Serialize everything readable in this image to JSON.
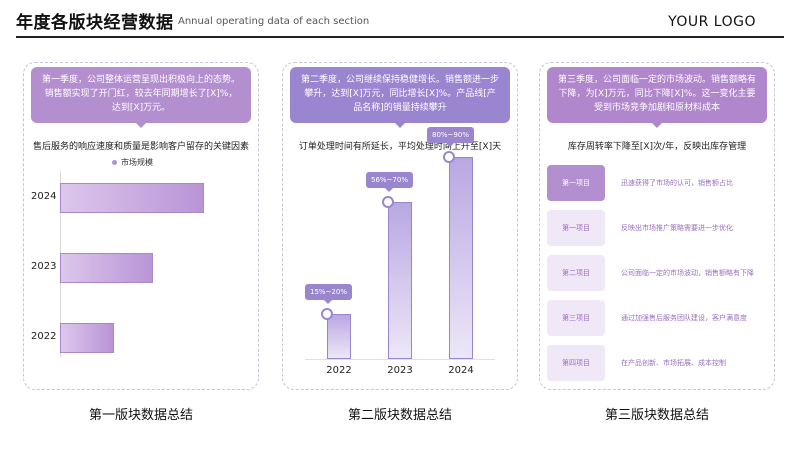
{
  "header": {
    "title": "年度各版块经营数据",
    "subtitle": "Annual operating data of each section",
    "logo": "YOUR LOGO"
  },
  "panels": [
    {
      "bubble": "第一季度，公司整体运营呈现出积极向上的态势。销售额实现了开门红，较去年同期增长了[X]%，达到[X]万元。",
      "chart_title": "售后服务的响应速度和质量是影响客户留存的关键因素",
      "footer": "第一版块数据总结"
    },
    {
      "bubble": "第二季度，公司继续保持稳健增长。销售额进一步攀升，达到[X]万元，同比增长[X]%。产品线[产品名称]的销量持续攀升",
      "chart_title": "订单处理时间有所延长，平均处理时间上升至[X]天",
      "footer": "第二版块数据总结"
    },
    {
      "bubble": "第三季度，公司面临一定的市场波动。销售额略有下降，为[X]万元，同比下降[X]%。这一变化主要受到市场竞争加剧和原材料成本",
      "chart_title": "库存周转率下降至[X]次/年，反映出库存管理",
      "footer": "第三版块数据总结",
      "items": [
        {
          "tag": "第一项目",
          "text": "迅速获得了市场的认可，销售额占比"
        },
        {
          "tag": "第一项目",
          "text": "反映出市场推广策略需要进一步优化"
        },
        {
          "tag": "第二项目",
          "text": "公司面临一定的市场波动，销售额略有下降"
        },
        {
          "tag": "第三项目",
          "text": "通过加强售后服务团队建设，客户满意度"
        },
        {
          "tag": "第四项目",
          "text": "在产品创新、市场拓展、成本控制"
        }
      ]
    }
  ],
  "chart_data": [
    {
      "type": "bar",
      "orientation": "horizontal",
      "title": "售后服务的响应速度和质量是影响客户留存的关键因素",
      "legend": [
        "市场规模"
      ],
      "categories": [
        "2024",
        "2023",
        "2022"
      ],
      "series": [
        {
          "name": "市场规模",
          "values": [
            85,
            55,
            32
          ]
        }
      ],
      "xlim": [
        0,
        110
      ]
    },
    {
      "type": "bar",
      "title": "订单处理时间有所延长，平均处理时间上升至[X]天",
      "categories": [
        "2022",
        "2023",
        "2024"
      ],
      "values": [
        20,
        70,
        90
      ],
      "data_labels": [
        "15%~20%",
        "56%~70%",
        "80%~90%"
      ],
      "ylim": [
        0,
        100
      ]
    }
  ]
}
